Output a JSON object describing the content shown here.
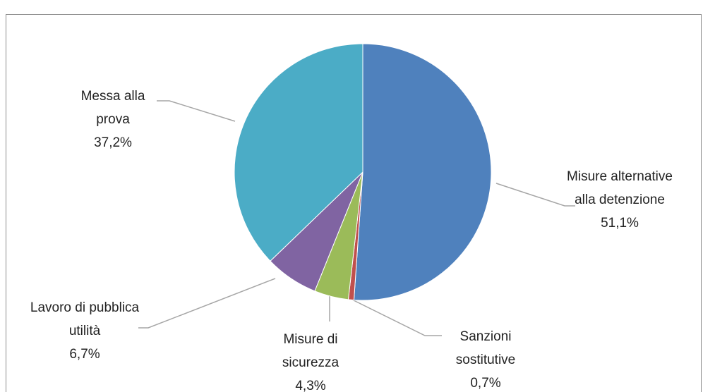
{
  "chart_data": {
    "type": "pie",
    "categories": [
      "Misure alternative alla detenzione",
      "Sanzioni sostitutive",
      "Misure di sicurezza",
      "Lavoro di pubblica utilità",
      "Messa alla prova"
    ],
    "values": [
      51.1,
      0.7,
      4.3,
      6.7,
      37.2
    ],
    "value_labels": [
      "51,1%",
      "0,7%",
      "4,3%",
      "6,7%",
      "37,2%"
    ],
    "colors": [
      "#4f81bd",
      "#c0504d",
      "#9bbb59",
      "#8064a2",
      "#4bacc6"
    ]
  }
}
